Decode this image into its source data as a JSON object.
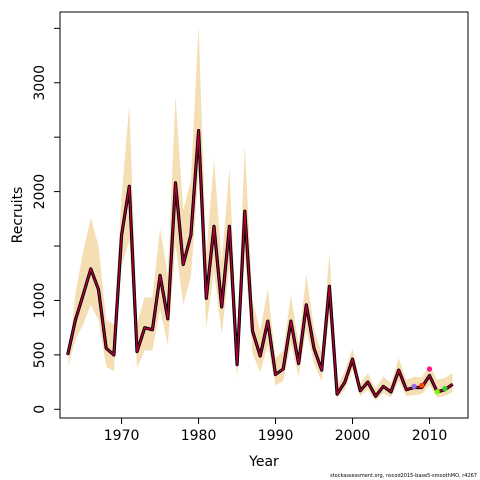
{
  "chart_data": {
    "type": "line",
    "xlabel": "Year",
    "ylabel": "Recruits",
    "xlim": [
      1962,
      2015
    ],
    "ylim": [
      -80,
      3650
    ],
    "x_ticks": [
      1970,
      1980,
      1990,
      2000,
      2010
    ],
    "y_ticks": [
      0,
      500,
      1000,
      2000,
      3000
    ],
    "y_minor_ticks": [
      1500,
      2500,
      3500
    ],
    "grid": false,
    "footnote": "stockassessment.org, nscod2015-base5-smoothMO, r4267",
    "colors": {
      "band": "#f5deb3",
      "main_line": "#000000",
      "main_overlay": "#b8003c",
      "retro_colors": [
        "#ff1493",
        "#ff4500",
        "#7cfc00",
        "#9370db",
        "#32cd32"
      ]
    },
    "series": [
      {
        "x": [
          1963,
          1964,
          1965,
          1966,
          1967,
          1968,
          1969,
          1970,
          1971,
          1972,
          1973,
          1974,
          1975,
          1976,
          1977,
          1978,
          1979,
          1980,
          1981,
          1982,
          1983,
          1984,
          1985,
          1986,
          1987,
          1988,
          1989,
          1990,
          1991,
          1992,
          1993,
          1994,
          1995,
          1996,
          1997,
          1998,
          1999,
          2000,
          2001,
          2002,
          2003,
          2004,
          2005,
          2006,
          2007,
          2008,
          2009,
          2010,
          2011,
          2012,
          2013
        ],
        "values": [
          500,
          820,
          1050,
          1290,
          1100,
          560,
          500,
          1600,
          2050,
          530,
          750,
          730,
          1230,
          830,
          2080,
          1330,
          1600,
          2560,
          1020,
          1680,
          940,
          1680,
          410,
          1820,
          720,
          490,
          810,
          320,
          370,
          810,
          420,
          960,
          560,
          360,
          1130,
          140,
          250,
          460,
          170,
          250,
          120,
          210,
          160,
          360,
          180,
          200,
          200,
          310,
          160,
          180,
          230
        ],
        "upper": [
          380,
          1060,
          1450,
          1760,
          1500,
          820,
          780,
          1950,
          2800,
          790,
          1030,
          1030,
          1660,
          1230,
          2880,
          1830,
          2100,
          3530,
          1420,
          2300,
          1350,
          2220,
          640,
          2430,
          1000,
          720,
          1110,
          470,
          540,
          1050,
          600,
          1240,
          740,
          520,
          1440,
          210,
          350,
          560,
          240,
          330,
          190,
          300,
          240,
          470,
          270,
          300,
          290,
          410,
          270,
          290,
          330
        ],
        "lower": [
          380,
          640,
          780,
          960,
          820,
          390,
          350,
          1320,
          1550,
          380,
          540,
          540,
          920,
          590,
          1510,
          960,
          1220,
          2180,
          750,
          1270,
          690,
          1310,
          280,
          1420,
          510,
          340,
          590,
          220,
          260,
          600,
          300,
          730,
          420,
          260,
          870,
          100,
          180,
          370,
          120,
          180,
          80,
          150,
          110,
          260,
          120,
          130,
          140,
          220,
          110,
          120,
          160
        ]
      }
    ],
    "retro_points": [
      {
        "x": 2010,
        "y": 370
      },
      {
        "x": 2009,
        "y": 220
      },
      {
        "x": 2011,
        "y": 160
      },
      {
        "x": 2008,
        "y": 210
      },
      {
        "x": 2012,
        "y": 190
      }
    ]
  }
}
